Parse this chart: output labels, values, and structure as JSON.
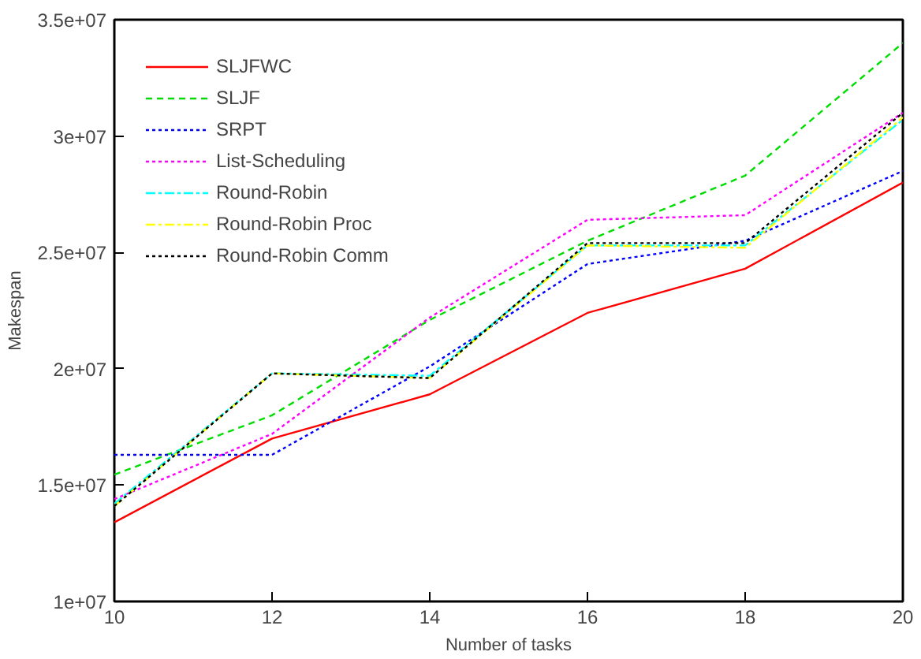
{
  "chart_data": {
    "type": "line",
    "xlabel": "Number of tasks",
    "ylabel": "Makespan",
    "x": [
      10,
      12,
      14,
      16,
      18,
      20
    ],
    "xlim": [
      10,
      20
    ],
    "xticks": [
      10,
      12,
      14,
      16,
      18,
      20
    ],
    "ylim": [
      10000000,
      35000000
    ],
    "yticks": [
      {
        "value": 10000000,
        "label": "1e+07"
      },
      {
        "value": 15000000,
        "label": "1.5e+07"
      },
      {
        "value": 20000000,
        "label": "2e+07"
      },
      {
        "value": 25000000,
        "label": "2.5e+07"
      },
      {
        "value": 30000000,
        "label": "3e+07"
      },
      {
        "value": 35000000,
        "label": "3.5e+07"
      }
    ],
    "grid": false,
    "legend": "top left",
    "marker": "none",
    "series": [
      {
        "name": "SLJFWC",
        "color": "#ff0000",
        "line_style": "solid",
        "values": [
          13400000,
          17000000,
          18900000,
          22400000,
          24300000,
          28000000
        ]
      },
      {
        "name": "SLJF",
        "color": "#00dd00",
        "line_style": "dashed",
        "values": [
          15450000,
          18000000,
          22100000,
          25500000,
          28300000,
          34000000
        ]
      },
      {
        "name": "SRPT",
        "color": "#0000ff",
        "line_style": "dotted",
        "values": [
          16300000,
          16300000,
          20100000,
          24500000,
          25500000,
          28500000
        ]
      },
      {
        "name": "List-Scheduling",
        "color": "#ff00ff",
        "line_style": "dotted",
        "values": [
          14400000,
          17200000,
          22200000,
          26400000,
          26600000,
          31000000
        ]
      },
      {
        "name": "Round-Robin",
        "color": "#00ffff",
        "line_style": "dashdot",
        "values": [
          14200000,
          19800000,
          19700000,
          25300000,
          25300000,
          30700000
        ]
      },
      {
        "name": "Round-Robin Proc",
        "color": "#ffff00",
        "line_style": "dashdot",
        "values": [
          14100000,
          19800000,
          19600000,
          25300000,
          25200000,
          30800000
        ]
      },
      {
        "name": "Round-Robin Comm",
        "color": "#000000",
        "line_style": "dotted",
        "values": [
          14100000,
          19800000,
          19600000,
          25400000,
          25400000,
          31000000
        ]
      }
    ]
  }
}
